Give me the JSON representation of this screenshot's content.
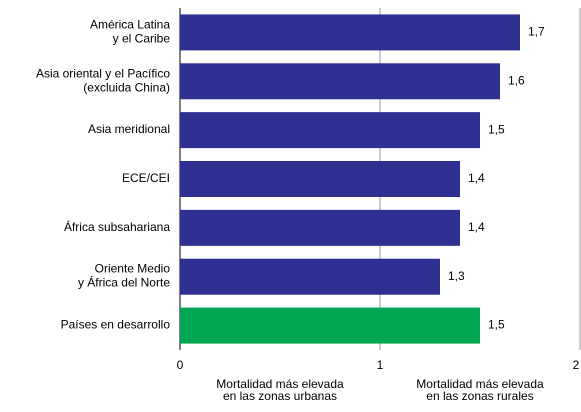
{
  "chart_data": {
    "type": "barh",
    "categories": [
      [
        "América Latina",
        "y el Caribe"
      ],
      [
        "Asia oriental y el Pacífico",
        "(excluida China)"
      ],
      [
        "Asia meridional"
      ],
      [
        "ECE/CEI"
      ],
      [
        "África subsahariana"
      ],
      [
        "Oriente Medio",
        "y África del Norte"
      ],
      [
        "Países en desarrollo"
      ]
    ],
    "values": [
      1.7,
      1.6,
      1.5,
      1.4,
      1.4,
      1.3,
      1.5
    ],
    "value_labels": [
      "1,7",
      "1,6",
      "1,5",
      "1,4",
      "1,4",
      "1,3",
      "1,5"
    ],
    "colors": [
      "#2e3192",
      "#2e3192",
      "#2e3192",
      "#2e3192",
      "#2e3192",
      "#2e3192",
      "#00a651"
    ],
    "xlim": [
      0,
      2
    ],
    "xticks": [
      0,
      1,
      2
    ],
    "x_annotations": [
      [
        "Mortalidad más elevada",
        "en las zonas urbanas"
      ],
      [
        "Mortalidad más elevada",
        "en las zonas rurales"
      ]
    ]
  }
}
